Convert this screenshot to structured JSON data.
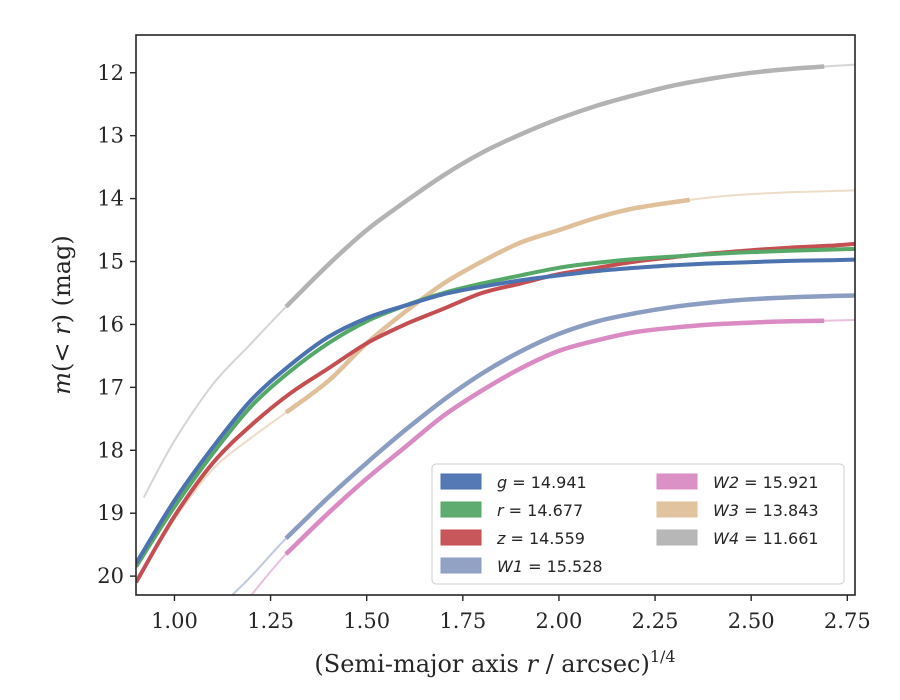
{
  "chart_data": {
    "type": "line",
    "xlabel": "(Semi-major axis r / arcsec)",
    "xlabel_italic": "r",
    "xlabel_exponent": "1/4",
    "ylabel_prefix": "m(",
    "ylabel_math": "< r",
    "ylabel_suffix": ") (mag)",
    "xlim": [
      0.9,
      2.77
    ],
    "ylim": [
      20.3,
      11.4
    ],
    "y_inverted": true,
    "grid": false,
    "legend_position": "lower-right",
    "legend_columns": 2,
    "x_ticks": [
      1.0,
      1.25,
      1.5,
      1.75,
      2.0,
      2.25,
      2.5,
      2.75
    ],
    "x_tick_labels": [
      "1.00",
      "1.25",
      "1.50",
      "1.75",
      "2.00",
      "2.25",
      "2.50",
      "2.75"
    ],
    "y_ticks": [
      12,
      13,
      14,
      15,
      16,
      17,
      18,
      19,
      20
    ],
    "y_tick_labels": [
      "12",
      "13",
      "14",
      "15",
      "16",
      "17",
      "18",
      "19",
      "20"
    ],
    "series": [
      {
        "band": "g",
        "total": "14.941",
        "color": "#4c72b0",
        "legend_symbol": "g",
        "legend_value": "= 14.941",
        "x": [
          0.9,
          1.0,
          1.1,
          1.2,
          1.3,
          1.4,
          1.5,
          1.6,
          1.7,
          1.8,
          1.9,
          2.0,
          2.1,
          2.2,
          2.3,
          2.4,
          2.5,
          2.6,
          2.7,
          2.77
        ],
        "y": [
          19.8,
          18.8,
          17.95,
          17.2,
          16.65,
          16.2,
          15.9,
          15.7,
          15.52,
          15.4,
          15.3,
          15.22,
          15.15,
          15.1,
          15.06,
          15.03,
          15.01,
          14.99,
          14.98,
          14.97
        ],
        "thick_range": [
          0.9,
          2.77
        ]
      },
      {
        "band": "r",
        "total": "14.677",
        "color": "#55a868",
        "legend_symbol": "r",
        "legend_value": "= 14.677",
        "x": [
          0.9,
          1.0,
          1.1,
          1.2,
          1.3,
          1.4,
          1.5,
          1.6,
          1.7,
          1.8,
          1.9,
          2.0,
          2.1,
          2.2,
          2.3,
          2.4,
          2.5,
          2.6,
          2.7,
          2.77
        ],
        "y": [
          19.85,
          18.9,
          18.05,
          17.3,
          16.75,
          16.3,
          15.95,
          15.7,
          15.5,
          15.35,
          15.22,
          15.1,
          15.02,
          14.96,
          14.92,
          14.88,
          14.85,
          14.83,
          14.81,
          14.8
        ],
        "thick_range": [
          0.9,
          2.77
        ]
      },
      {
        "band": "z",
        "total": "14.559",
        "color": "#c44e52",
        "legend_symbol": "z",
        "legend_value": "= 14.559",
        "x": [
          0.9,
          1.0,
          1.1,
          1.2,
          1.3,
          1.4,
          1.5,
          1.6,
          1.7,
          1.8,
          1.9,
          2.0,
          2.1,
          2.2,
          2.3,
          2.4,
          2.5,
          2.6,
          2.7,
          2.77
        ],
        "y": [
          20.1,
          19.05,
          18.2,
          17.6,
          17.1,
          16.7,
          16.3,
          16.0,
          15.75,
          15.5,
          15.35,
          15.2,
          15.1,
          15.0,
          14.93,
          14.87,
          14.82,
          14.78,
          14.75,
          14.72
        ],
        "thick_range": [
          0.9,
          2.77
        ]
      },
      {
        "band": "W1",
        "total": "15.528",
        "color": "#8c9dc2",
        "legend_symbol": "W1",
        "legend_value": "= 15.528",
        "x": [
          1.15,
          1.2,
          1.29,
          1.4,
          1.5,
          1.6,
          1.7,
          1.8,
          1.9,
          2.0,
          2.1,
          2.2,
          2.3,
          2.4,
          2.5,
          2.6,
          2.7,
          2.77
        ],
        "y": [
          20.3,
          20.0,
          19.4,
          18.75,
          18.2,
          17.68,
          17.2,
          16.78,
          16.43,
          16.15,
          15.95,
          15.82,
          15.72,
          15.65,
          15.6,
          15.57,
          15.55,
          15.54
        ],
        "thick_range": [
          1.29,
          2.77
        ]
      },
      {
        "band": "W2",
        "total": "15.921",
        "color": "#da8bc3",
        "legend_symbol": "W2",
        "legend_value": "= 15.921",
        "x": [
          1.2,
          1.29,
          1.4,
          1.5,
          1.6,
          1.7,
          1.8,
          1.9,
          2.0,
          2.1,
          2.2,
          2.3,
          2.4,
          2.5,
          2.6,
          2.69,
          2.77
        ],
        "y": [
          20.3,
          19.65,
          19.0,
          18.45,
          17.95,
          17.45,
          17.05,
          16.7,
          16.42,
          16.25,
          16.12,
          16.05,
          16.0,
          15.97,
          15.95,
          15.94,
          15.93
        ],
        "thick_range": [
          1.29,
          2.69
        ]
      },
      {
        "band": "W3",
        "total": "13.843",
        "color": "#dfc09a",
        "legend_symbol": "W3",
        "legend_value": "= 13.843",
        "x": [
          0.9,
          1.0,
          1.1,
          1.2,
          1.29,
          1.4,
          1.5,
          1.6,
          1.7,
          1.8,
          1.9,
          2.0,
          2.1,
          2.2,
          2.34,
          2.45,
          2.6,
          2.77
        ],
        "y": [
          20.1,
          19.1,
          18.3,
          17.8,
          17.4,
          16.9,
          16.3,
          15.8,
          15.35,
          15.0,
          14.7,
          14.5,
          14.3,
          14.15,
          14.02,
          13.95,
          13.9,
          13.87
        ],
        "thick_range": [
          1.29,
          2.34
        ]
      },
      {
        "band": "W4",
        "total": "11.661",
        "color": "#b3b3b3",
        "legend_symbol": "W4",
        "legend_value": "= 11.661",
        "x": [
          0.92,
          1.0,
          1.1,
          1.2,
          1.29,
          1.4,
          1.5,
          1.6,
          1.7,
          1.8,
          1.9,
          2.0,
          2.1,
          2.2,
          2.3,
          2.4,
          2.5,
          2.6,
          2.69,
          2.77
        ],
        "y": [
          18.75,
          17.85,
          16.95,
          16.3,
          15.72,
          15.05,
          14.5,
          14.05,
          13.63,
          13.27,
          12.98,
          12.73,
          12.52,
          12.35,
          12.2,
          12.09,
          12.0,
          11.94,
          11.9,
          11.87
        ],
        "thick_range": [
          1.29,
          2.69
        ]
      }
    ]
  }
}
